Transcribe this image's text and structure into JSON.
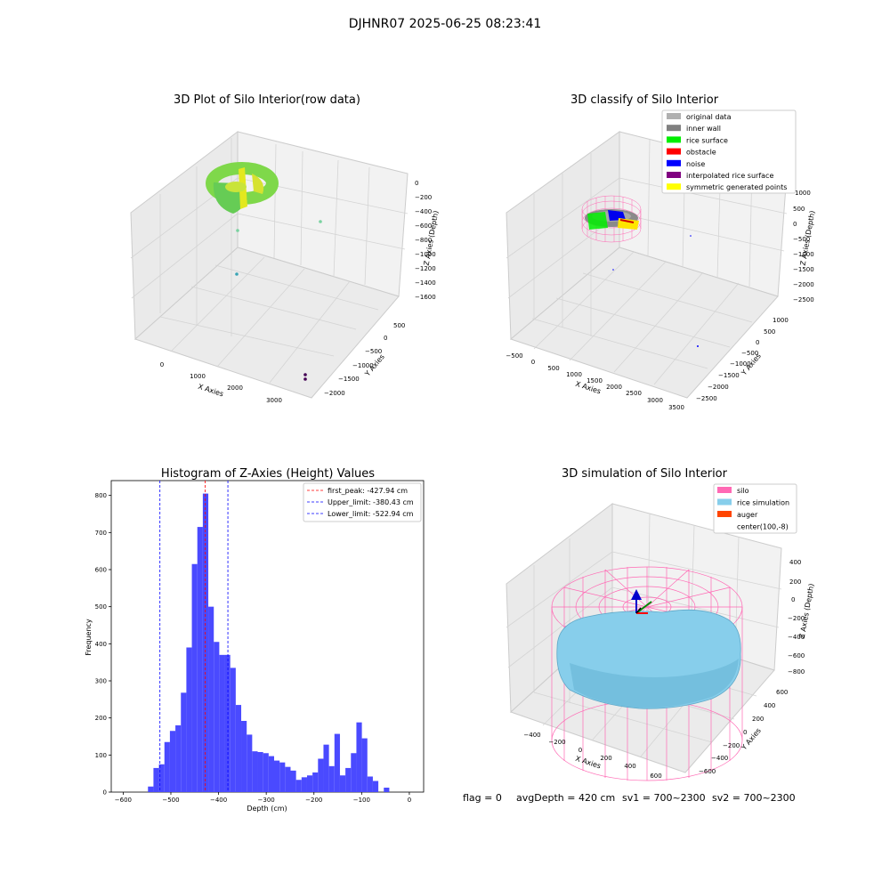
{
  "figure": {
    "suptitle": "DJHNR07 2025-06-25 08:23:41",
    "footer": {
      "flag": "flag = 0",
      "avg_depth": "avgDepth = 420 cm",
      "sv1": "sv1 = 700~2300",
      "sv2": "sv2 = 700~2300"
    }
  },
  "panel_raw": {
    "title": "3D Plot of Silo Interior(row data)",
    "xlabel": "X Axies",
    "ylabel": "Y Axies",
    "zlabel": "Z Axies (Depth)",
    "x_ticks": [
      "0",
      "1000",
      "2000",
      "3000"
    ],
    "y_ticks": [
      "500",
      "0",
      "−500",
      "−1000",
      "−1500",
      "−2000"
    ],
    "z_ticks": [
      "0",
      "−200",
      "−400",
      "−600",
      "−800",
      "−1000",
      "−1200",
      "−1400",
      "−1600"
    ]
  },
  "panel_classify": {
    "title": "3D classify of Silo Interior",
    "xlabel": "X Axies",
    "ylabel": "Y Axies",
    "zlabel": "Z Axies (Depth)",
    "x_ticks": [
      "−500",
      "0",
      "500",
      "1000",
      "1500",
      "2000",
      "2500",
      "3000",
      "3500"
    ],
    "y_ticks": [
      "1000",
      "500",
      "0",
      "−500",
      "−1000",
      "−1500",
      "−2000",
      "−2500"
    ],
    "z_ticks": [
      "1000",
      "500",
      "0",
      "−500",
      "−1000",
      "−1500",
      "−2000",
      "−2500"
    ],
    "legend": [
      {
        "label": "original data",
        "color": "#b0b0b0"
      },
      {
        "label": "inner wall",
        "color": "#808080"
      },
      {
        "label": "rice surface",
        "color": "#00ee00"
      },
      {
        "label": "obstacle",
        "color": "#ff0000"
      },
      {
        "label": "noise",
        "color": "#0000ff"
      },
      {
        "label": "interpolated rice surface",
        "color": "#800080"
      },
      {
        "label": "symmetric generated points",
        "color": "#ffff00"
      }
    ]
  },
  "panel_sim": {
    "title": "3D simulation of Silo Interior",
    "xlabel": "X Axies",
    "ylabel": "Y Axies",
    "zlabel": "Z Axies (Depth)",
    "x_ticks": [
      "−400",
      "−200",
      "0",
      "200",
      "400",
      "600"
    ],
    "y_ticks": [
      "600",
      "400",
      "200",
      "0",
      "−200",
      "−400",
      "−600"
    ],
    "z_ticks": [
      "400",
      "200",
      "0",
      "−200",
      "−400",
      "−600",
      "−800"
    ],
    "legend": [
      {
        "label": "silo",
        "color": "#ff69b4"
      },
      {
        "label": "rice simulation",
        "color": "#87ceeb"
      },
      {
        "label": "auger",
        "color": "#ff4500"
      },
      {
        "label": "center(100,-8)",
        "color": ""
      }
    ]
  },
  "chart_data": {
    "type": "bar",
    "title": "Histogram of Z-Axies (Height) Values",
    "xlabel": "Depth (cm)",
    "ylabel": "Frequency",
    "xlim": [
      -625,
      30
    ],
    "ylim": [
      0,
      840
    ],
    "x_ticks": [
      -600,
      -500,
      -400,
      -300,
      -200,
      -100,
      0
    ],
    "x_tick_labels": [
      "−600",
      "−500",
      "−400",
      "−300",
      "−200",
      "−100",
      "0"
    ],
    "y_ticks": [
      0,
      100,
      200,
      300,
      400,
      500,
      600,
      700,
      800
    ],
    "bar_color": "#4a4aff",
    "bin_start": -548,
    "bin_width": 11.5,
    "values": [
      15,
      65,
      75,
      135,
      165,
      180,
      268,
      390,
      615,
      715,
      805,
      500,
      405,
      370,
      370,
      335,
      235,
      192,
      155,
      110,
      108,
      105,
      97,
      85,
      80,
      68,
      58,
      33,
      40,
      45,
      53,
      90,
      128,
      70,
      157,
      45,
      65,
      105,
      188,
      145,
      42,
      30,
      0,
      12
    ],
    "lines": [
      {
        "label": "first_peak: -427.94 cm",
        "x": -427.94,
        "color": "#ff0000"
      },
      {
        "label": "Upper_limit: -380.43 cm",
        "x": -380.43,
        "color": "#0000ff"
      },
      {
        "label": "Lower_limit: -522.94 cm",
        "x": -522.94,
        "color": "#0000ff"
      }
    ],
    "legend_position": "upper right"
  }
}
